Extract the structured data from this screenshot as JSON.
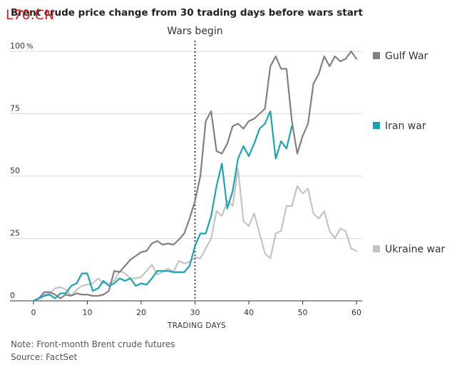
{
  "header": {
    "title": "Brent crude price change from 30 trading days before wars start",
    "watermark": "L70.CN"
  },
  "footer": {
    "note": "Note: Front-month Brent crude futures",
    "source": "Source: FactSet"
  },
  "chart_data": {
    "type": "line",
    "title": "Brent crude price change from 30 trading days before wars start",
    "xlabel": "TRADING DAYS",
    "ylabel": "",
    "xlim": [
      0,
      60
    ],
    "ylim": [
      0,
      100
    ],
    "x_ticks": [
      0,
      10,
      20,
      30,
      40,
      50,
      60
    ],
    "y_ticks": [
      {
        "value": 0,
        "label": "0"
      },
      {
        "value": 25,
        "label": "25"
      },
      {
        "value": 50,
        "label": "50"
      },
      {
        "value": 75,
        "label": "75"
      },
      {
        "value": 100,
        "label": "100"
      }
    ],
    "y_unit": "%",
    "grid": "horizontal",
    "legend_position": "right",
    "annotations": [
      {
        "text": "Wars begin",
        "x": 30,
        "style": "dotted vertical line"
      }
    ],
    "series": [
      {
        "name": "Gulf War",
        "color": "#808080",
        "x": [
          0,
          1,
          2,
          3,
          4,
          5,
          6,
          7,
          8,
          9,
          10,
          11,
          12,
          13,
          14,
          15,
          16,
          17,
          18,
          19,
          20,
          21,
          22,
          23,
          24,
          25,
          26,
          27,
          28,
          29,
          30,
          31,
          32,
          33,
          34,
          35,
          36,
          37,
          38,
          39,
          40,
          41,
          42,
          43,
          44,
          45,
          46,
          47,
          48,
          49,
          50,
          51,
          52,
          53,
          54,
          55,
          56,
          57,
          58,
          59,
          60
        ],
        "values": [
          0,
          1,
          3.5,
          3.5,
          2.5,
          1,
          2.5,
          2,
          3,
          2.5,
          2.5,
          2,
          2,
          2.5,
          4,
          12,
          11.5,
          14,
          16.5,
          18,
          19.5,
          20,
          23,
          24,
          22.5,
          23,
          22.5,
          24.5,
          27,
          33,
          40,
          50,
          72,
          76,
          60,
          59,
          63,
          70,
          71,
          69,
          72,
          73,
          75,
          77,
          94,
          98,
          93,
          93,
          72,
          59,
          66,
          71,
          87,
          91,
          98,
          94,
          98,
          96,
          97,
          100,
          97
        ]
      },
      {
        "name": "Iran war",
        "color": "#1aa3b5",
        "x": [
          0,
          1,
          2,
          3,
          4,
          5,
          6,
          7,
          8,
          9,
          10,
          11,
          12,
          13,
          14,
          15,
          16,
          17,
          18,
          19,
          20,
          21,
          22,
          23,
          24,
          25,
          26,
          27,
          28,
          29,
          30,
          31,
          32,
          33,
          34,
          35,
          36,
          37,
          38,
          39,
          40,
          41,
          42,
          43,
          44,
          45,
          46,
          47,
          48
        ],
        "values": [
          0,
          1,
          2,
          2.5,
          1,
          3,
          3,
          6,
          7,
          11,
          11,
          4,
          5,
          8,
          6,
          7,
          9,
          8,
          9,
          6,
          7,
          6.5,
          9,
          12,
          12,
          12,
          11.5,
          11.5,
          11.5,
          14,
          22,
          27,
          27,
          34,
          46,
          55,
          37,
          44,
          57,
          62,
          58,
          63,
          69,
          71,
          76,
          57,
          64,
          61,
          70
        ]
      },
      {
        "name": "Ukraine war",
        "color": "#c4c4c4",
        "x": [
          0,
          1,
          2,
          3,
          4,
          5,
          6,
          7,
          8,
          9,
          10,
          11,
          12,
          13,
          14,
          15,
          16,
          17,
          18,
          19,
          20,
          21,
          22,
          23,
          24,
          25,
          26,
          27,
          28,
          29,
          30,
          31,
          32,
          33,
          34,
          35,
          36,
          37,
          38,
          39,
          40,
          41,
          42,
          43,
          44,
          45,
          46,
          47,
          48,
          49,
          50,
          51,
          52,
          53,
          54,
          55,
          56,
          57,
          58,
          59,
          60
        ],
        "values": [
          0,
          1,
          2.5,
          3,
          5,
          5.5,
          4.5,
          2,
          4.5,
          6,
          6.5,
          7,
          9,
          7,
          7,
          8,
          12,
          11,
          9,
          9,
          9.5,
          12,
          14.5,
          10.5,
          11.5,
          13,
          11.5,
          16,
          15,
          15.5,
          17.5,
          17,
          21,
          25,
          36,
          34,
          40,
          38,
          53,
          32,
          30,
          35,
          27,
          19,
          17,
          27,
          28,
          38,
          38,
          46,
          43,
          45,
          35,
          33,
          36,
          28,
          25,
          29,
          28,
          21,
          20
        ]
      }
    ]
  }
}
